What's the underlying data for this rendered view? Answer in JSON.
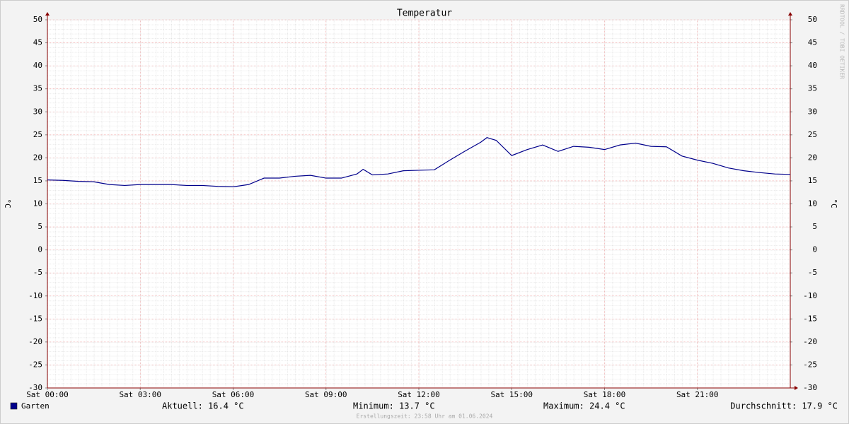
{
  "chart_data": {
    "type": "line",
    "title": "Temperatur",
    "y_label": "°C",
    "x": [
      0,
      0.5,
      1,
      1.5,
      2,
      2.5,
      3,
      3.5,
      4,
      4.5,
      5,
      5.5,
      6,
      6.5,
      7,
      7.5,
      8,
      8.5,
      9,
      9.5,
      10,
      10.2,
      10.5,
      11,
      11.5,
      12,
      12.5,
      13,
      13.5,
      14,
      14.2,
      14.5,
      15,
      15.5,
      16,
      16.5,
      17,
      17.5,
      18,
      18.5,
      19,
      19.5,
      20,
      20.5,
      21,
      21.5,
      22,
      22.5,
      23,
      23.5,
      24
    ],
    "series": [
      {
        "name": "Garten",
        "color": "#00008b",
        "values": [
          15.2,
          15.1,
          14.9,
          14.8,
          14.2,
          14.0,
          14.2,
          14.2,
          14.2,
          14.0,
          14.0,
          13.8,
          13.7,
          14.2,
          15.6,
          15.6,
          16.0,
          16.2,
          15.6,
          15.6,
          16.5,
          17.5,
          16.3,
          16.5,
          17.2,
          17.3,
          17.4,
          19.5,
          21.5,
          23.4,
          24.4,
          23.8,
          20.5,
          21.8,
          22.8,
          21.4,
          22.5,
          22.3,
          21.8,
          22.8,
          23.2,
          22.5,
          22.4,
          20.4,
          19.5,
          18.8,
          17.8,
          17.2,
          16.8,
          16.5,
          16.4
        ]
      }
    ],
    "xlim": [
      0,
      24
    ],
    "xticks": [
      {
        "value": 0,
        "label": "Sat 00:00"
      },
      {
        "value": 3,
        "label": "Sat 03:00"
      },
      {
        "value": 6,
        "label": "Sat 06:00"
      },
      {
        "value": 9,
        "label": "Sat 09:00"
      },
      {
        "value": 12,
        "label": "Sat 12:00"
      },
      {
        "value": 15,
        "label": "Sat 15:00"
      },
      {
        "value": 18,
        "label": "Sat 18:00"
      },
      {
        "value": 21,
        "label": "Sat 21:00"
      }
    ],
    "ylim": [
      -30,
      50
    ],
    "yticks": [
      -30,
      -25,
      -20,
      -15,
      -10,
      -5,
      0,
      5,
      10,
      15,
      20,
      25,
      30,
      35,
      40,
      45,
      50
    ],
    "grid": true,
    "stats": [
      "Aktuell: 16.4 °C",
      "Minimum: 13.7 °C",
      "Maximum: 24.4 °C",
      "Durchschnitt: 17.9 °C"
    ],
    "footer": "Erstellungszeit: 23:58 Uhr am 01.06.2024",
    "watermark": "RRDTOOL / TOBI OETIKER"
  }
}
